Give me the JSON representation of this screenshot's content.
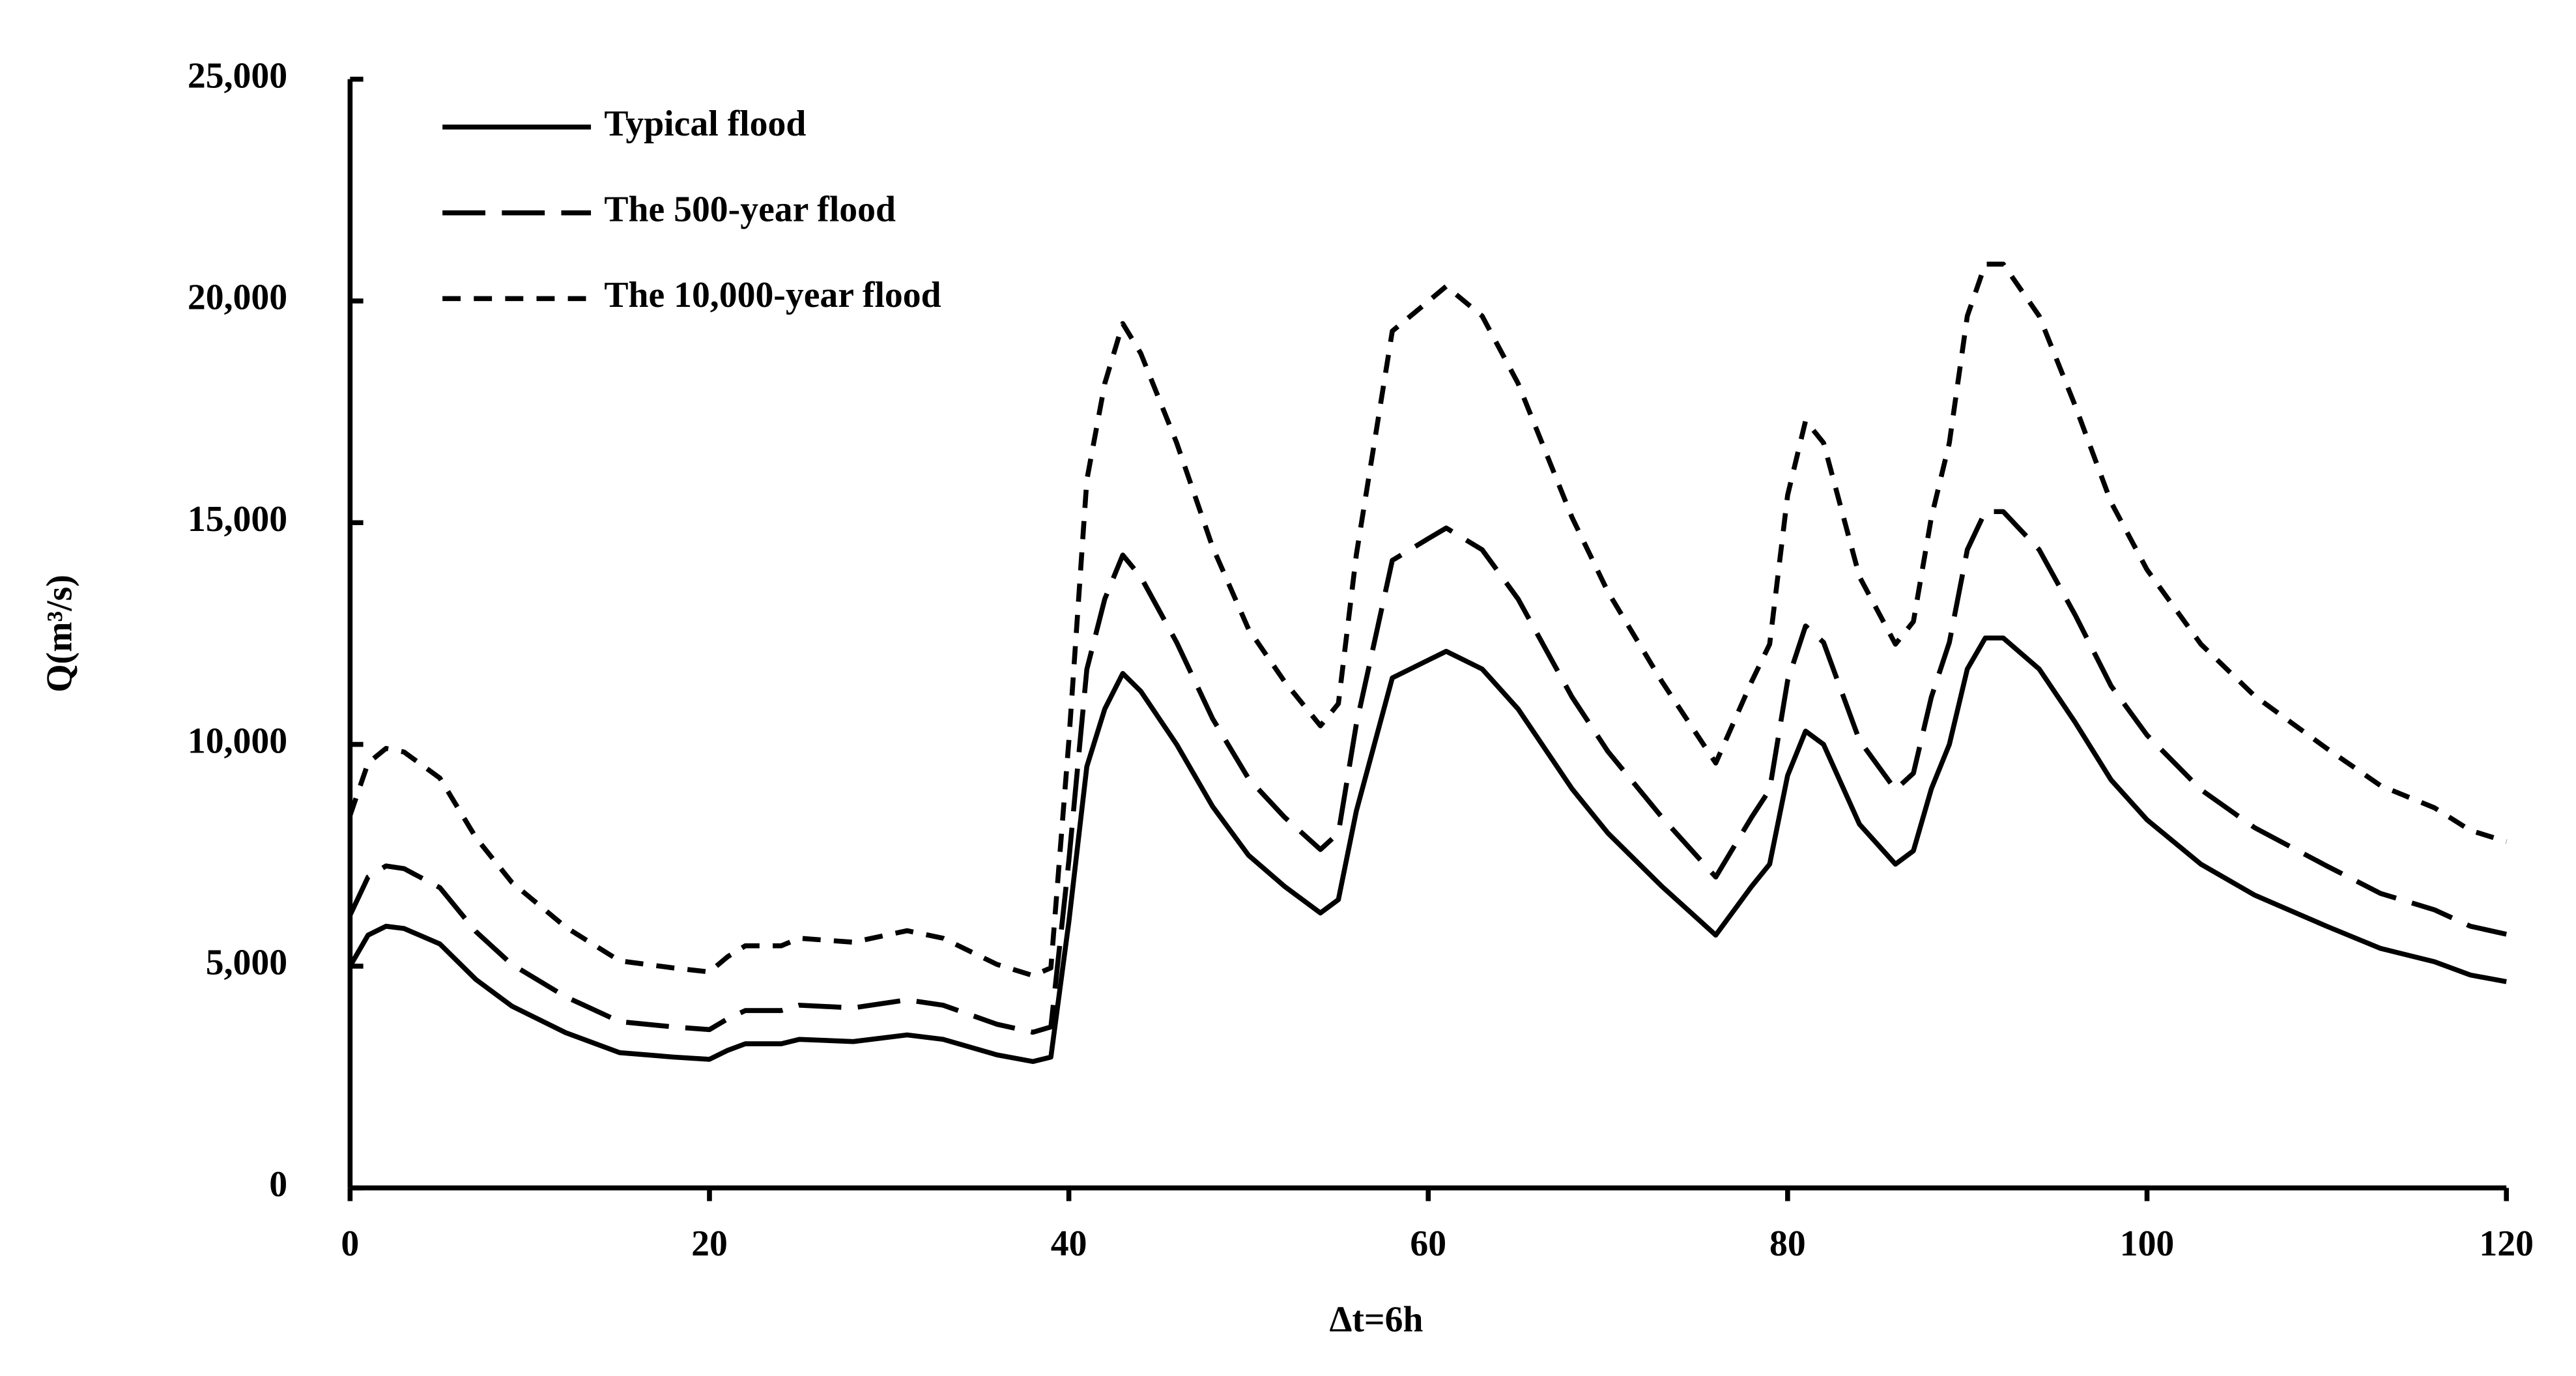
{
  "chart_data": {
    "type": "line",
    "x_label": "Δt=6h",
    "y_label": "Q(m³/s)",
    "x": [
      0,
      1,
      2,
      3,
      5,
      7,
      9,
      12,
      15,
      18,
      20,
      21,
      22,
      24,
      25,
      28,
      31,
      33,
      36,
      38,
      39,
      40,
      41,
      42,
      43,
      44,
      46,
      48,
      50,
      52,
      54,
      55,
      56,
      57,
      58,
      60,
      61,
      63,
      65,
      68,
      70,
      73,
      76,
      78,
      79,
      80,
      81,
      82,
      84,
      86,
      87,
      88,
      89,
      90,
      91,
      92,
      94,
      96,
      98,
      100,
      103,
      106,
      110,
      113,
      116,
      118,
      120
    ],
    "series": [
      {
        "name": "Typical flood",
        "color": "#000000",
        "line_style": "solid",
        "values": [
          5000,
          5700,
          5900,
          5850,
          5500,
          4700,
          4100,
          3500,
          3050,
          2950,
          2900,
          3100,
          3250,
          3250,
          3350,
          3300,
          3450,
          3350,
          3000,
          2850,
          2950,
          6000,
          9500,
          10800,
          11600,
          11200,
          10000,
          8600,
          7500,
          6800,
          6200,
          6500,
          8500,
          10000,
          11500,
          11900,
          12100,
          11700,
          10800,
          9000,
          8000,
          6800,
          5700,
          6800,
          7300,
          9300,
          10300,
          10000,
          8200,
          7300,
          7600,
          9000,
          10000,
          11700,
          12400,
          12400,
          11700,
          10500,
          9200,
          8300,
          7300,
          6600,
          5900,
          5400,
          5100,
          4800,
          4650
        ]
      },
      {
        "name": "The 500-year flood",
        "color": "#000000",
        "line_style": "long-dash",
        "values": [
          6150,
          7010,
          7260,
          7200,
          6770,
          5780,
          5040,
          4310,
          3750,
          3630,
          3570,
          3810,
          4000,
          4000,
          4120,
          4060,
          4240,
          4120,
          3690,
          3510,
          3630,
          7380,
          11690,
          13280,
          14270,
          13780,
          12300,
          10580,
          9230,
          8360,
          7630,
          8000,
          10460,
          12300,
          14150,
          14640,
          14880,
          14390,
          13280,
          11070,
          9840,
          8360,
          7010,
          8360,
          8980,
          11440,
          12670,
          12300,
          10090,
          8980,
          9350,
          11070,
          12300,
          14390,
          15250,
          15250,
          14390,
          12920,
          11320,
          10210,
          8980,
          8120,
          7260,
          6640,
          6270,
          5900,
          5720
        ]
      },
      {
        "name": "The 10,000-year flood",
        "color": "#000000",
        "line_style": "short-dash",
        "values": [
          8400,
          9580,
          9910,
          9830,
          9240,
          7900,
          6890,
          5880,
          5120,
          4960,
          4870,
          5210,
          5460,
          5460,
          5630,
          5540,
          5800,
          5630,
          5040,
          4790,
          4960,
          10080,
          15960,
          18140,
          19490,
          18820,
          16800,
          14450,
          12600,
          11420,
          10420,
          10920,
          14280,
          16800,
          19320,
          19990,
          20330,
          19660,
          18140,
          15120,
          13440,
          11420,
          9580,
          11420,
          12260,
          15620,
          17300,
          16800,
          13780,
          12260,
          12770,
          15120,
          16800,
          19660,
          20830,
          20830,
          19660,
          17640,
          15460,
          13940,
          12260,
          11090,
          9910,
          9070,
          8570,
          8060,
          7810
        ]
      }
    ],
    "xlim": [
      0,
      120
    ],
    "xticks": [
      0,
      20,
      40,
      60,
      80,
      100,
      120
    ],
    "ylim": [
      0,
      25000
    ],
    "yticks": [
      0,
      {
        "value": 5000,
        "label": "5,000"
      },
      {
        "value": 10000,
        "label": "10,000"
      },
      {
        "value": 15000,
        "label": "15,000"
      },
      {
        "value": 20000,
        "label": "20,000"
      },
      {
        "value": 25000,
        "label": "25,000"
      }
    ],
    "legend": "upper left",
    "grid": false
  }
}
